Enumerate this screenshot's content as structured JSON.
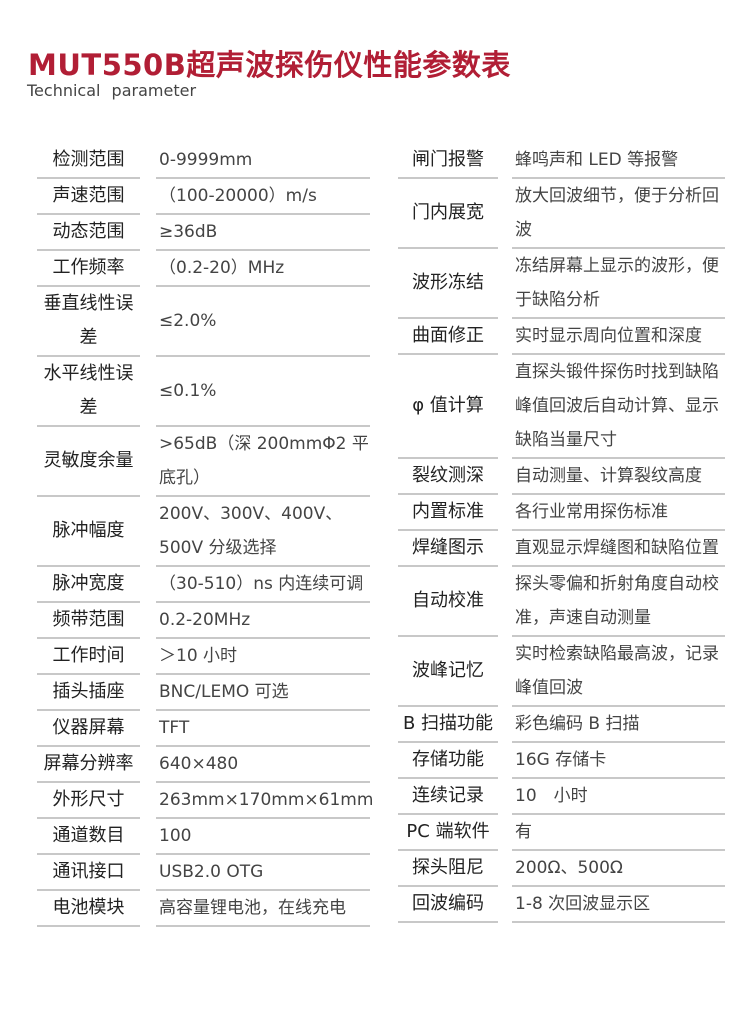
{
  "header": {
    "title": "MUT550B超声波探伤仪性能参数表",
    "subtitle": "Technical parameter",
    "accent_color": "#b11e35"
  },
  "left_table": [
    {
      "label": "检测范围",
      "value": "0-9999mm"
    },
    {
      "label": "声速范围",
      "value": "（100-20000）m/s"
    },
    {
      "label": "动态范围",
      "value": "≥36dB"
    },
    {
      "label": "工作频率",
      "value": "（0.2-20）MHz"
    },
    {
      "label": "垂直线性误差",
      "value": "≤2.0%"
    },
    {
      "label": "水平线性误差",
      "value": "≤0.1%"
    },
    {
      "label": "灵敏度余量",
      "value": ">65dB（深 200mmΦ2 平底孔）"
    },
    {
      "label": "脉冲幅度",
      "value": "200V、300V、400V、500V 分级选择"
    },
    {
      "label": "脉冲宽度",
      "value": "（30-510）ns 内连续可调"
    },
    {
      "label": "频带范围",
      "value": "0.2-20MHz"
    },
    {
      "label": "工作时间",
      "value": "＞10 小时"
    },
    {
      "label": "插头插座",
      "value": "BNC/LEMO 可选"
    },
    {
      "label": "仪器屏幕",
      "value": "TFT"
    },
    {
      "label": "屏幕分辨率",
      "value": "640×480"
    },
    {
      "label": "外形尺寸",
      "value": "263mm×170mm×61mm"
    },
    {
      "label": "通道数目",
      "value": "100"
    },
    {
      "label": "通讯接口",
      "value": "USB2.0 OTG"
    },
    {
      "label": "电池模块",
      "value": "高容量锂电池，在线充电"
    }
  ],
  "right_table": [
    {
      "label": "闸门报警",
      "value": "蜂鸣声和 LED 等报警"
    },
    {
      "label": "门内展宽",
      "value": "放大回波细节，便于分析回波"
    },
    {
      "label": "波形冻结",
      "value": "冻结屏幕上显示的波形，便于缺陷分析"
    },
    {
      "label": "曲面修正",
      "value": "实时显示周向位置和深度"
    },
    {
      "label": "φ 值计算",
      "value": "直探头锻件探伤时找到缺陷峰值回波后自动计算、显示缺陷当量尺寸"
    },
    {
      "label": "裂纹测深",
      "value": "自动测量、计算裂纹高度"
    },
    {
      "label": "内置标准",
      "value": "各行业常用探伤标准"
    },
    {
      "label": "焊缝图示",
      "value": "直观显示焊缝图和缺陷位置"
    },
    {
      "label": "自动校准",
      "value": "探头零偏和折射角度自动校准，声速自动测量"
    },
    {
      "label": "波峰记忆",
      "value": "实时检索缺陷最高波，记录峰值回波"
    },
    {
      "label": "B 扫描功能",
      "value": "彩色编码 B 扫描"
    },
    {
      "label": "存储功能",
      "value": "16G 存储卡"
    },
    {
      "label": "连续记录",
      "value": "10　小时"
    },
    {
      "label": "PC 端软件",
      "value": "有"
    },
    {
      "label": "探头阻尼",
      "value": "200Ω、500Ω"
    },
    {
      "label": "回波编码",
      "value": "1-8 次回波显示区"
    }
  ]
}
